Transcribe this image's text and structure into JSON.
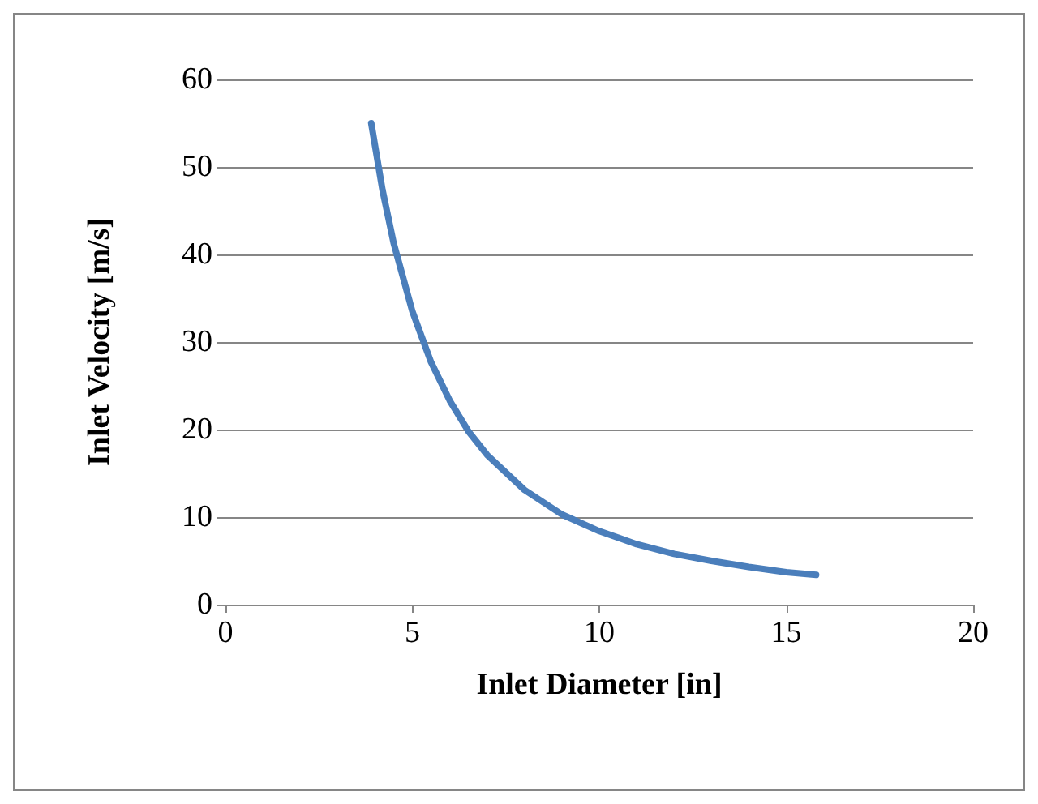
{
  "chart_data": {
    "type": "line",
    "xlabel": "Inlet Diameter [in]",
    "ylabel": "Inlet Velocity [m/s]",
    "x": [
      3.9,
      4.2,
      4.5,
      5,
      5.5,
      6,
      6.5,
      7,
      8,
      9,
      10,
      11,
      12,
      13,
      14,
      15,
      15.8
    ],
    "series": [
      {
        "color": "#4a7ebb",
        "values": [
          55,
          47.4,
          41.3,
          33.5,
          27.7,
          23.3,
          19.8,
          17.1,
          13.1,
          10.3,
          8.4,
          6.9,
          5.8,
          5,
          4.3,
          3.7,
          3.4
        ]
      }
    ],
    "xlim": [
      0,
      20
    ],
    "xticks": [
      0,
      5,
      10,
      15,
      20
    ],
    "ylim": [
      0,
      60
    ],
    "yticks": [
      0,
      10,
      20,
      30,
      40,
      50,
      60
    ],
    "grid": "y",
    "marker": "none",
    "line_style": "solid"
  }
}
